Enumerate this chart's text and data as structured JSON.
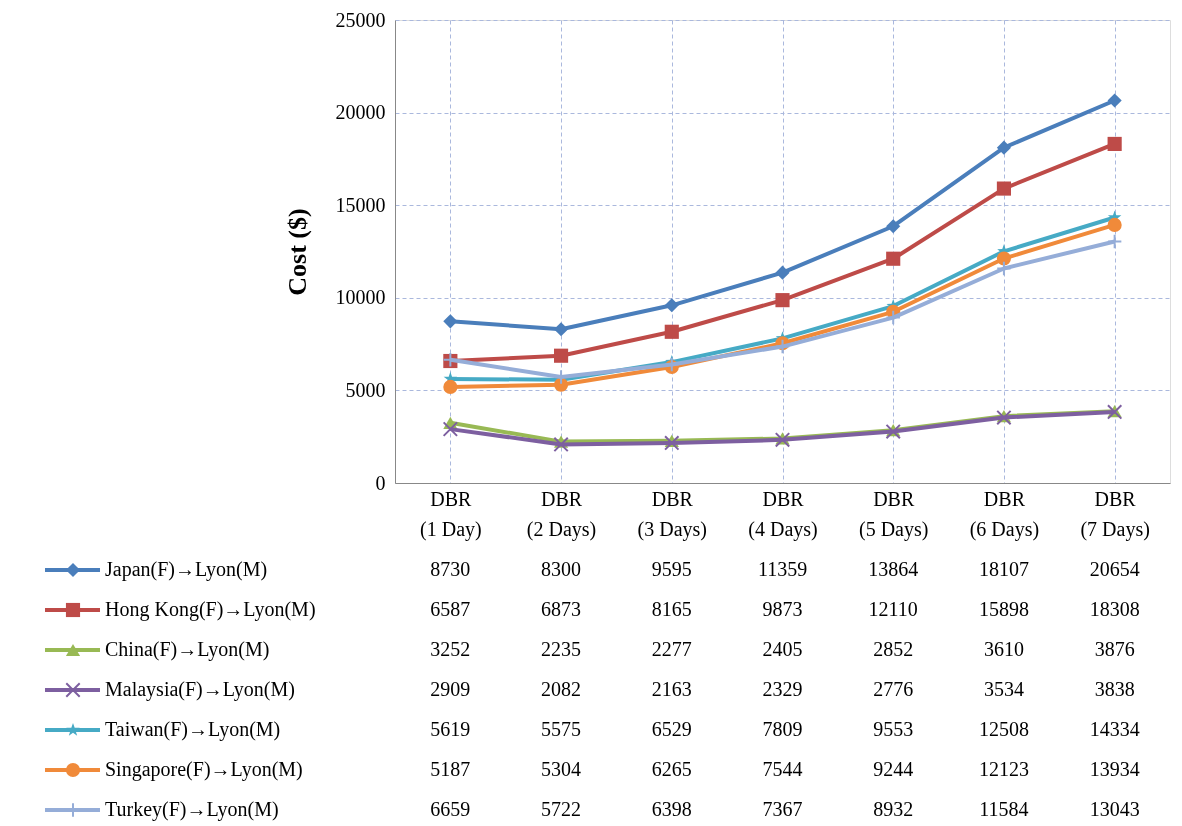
{
  "chart_data": {
    "type": "line",
    "ylabel": "Cost ($)",
    "categories": [
      "DBR\n(1 Day)",
      "DBR\n(2 Days)",
      "DBR\n(3 Days)",
      "DBR\n(4 Days)",
      "DBR\n(5 Days)",
      "DBR\n(6 Days)",
      "DBR\n(7 Days)"
    ],
    "series": [
      {
        "name": "Japan(F)→Lyon(M)",
        "color": "#4a7ebb",
        "marker": "diamond",
        "values": [
          8730,
          8300,
          9595,
          11359,
          13864,
          18107,
          20654
        ]
      },
      {
        "name": "Hong Kong(F)→Lyon(M)",
        "color": "#be4b48",
        "marker": "square",
        "values": [
          6587,
          6873,
          8165,
          9873,
          12110,
          15898,
          18308
        ]
      },
      {
        "name": "China(F)→Lyon(M)",
        "color": "#98b954",
        "marker": "triangle",
        "values": [
          3252,
          2235,
          2277,
          2405,
          2852,
          3610,
          3876
        ]
      },
      {
        "name": "Malaysia(F)→Lyon(M)",
        "color": "#7d5fa0",
        "marker": "cross",
        "values": [
          2909,
          2082,
          2163,
          2329,
          2776,
          3534,
          3838
        ]
      },
      {
        "name": "Taiwan(F)→Lyon(M)",
        "color": "#46aac5",
        "marker": "star",
        "values": [
          5619,
          5575,
          6529,
          7809,
          9553,
          12508,
          14334
        ]
      },
      {
        "name": "Singapore(F)→Lyon(M)",
        "color": "#f08a3a",
        "marker": "circle",
        "values": [
          5187,
          5304,
          6265,
          7544,
          9244,
          12123,
          13934
        ]
      },
      {
        "name": "Turkey(F)→Lyon(M)",
        "color": "#95add8",
        "marker": "plus",
        "values": [
          6659,
          5722,
          6398,
          7367,
          8932,
          11584,
          13043
        ]
      }
    ],
    "ylim": [
      0,
      25000
    ],
    "yticks": [
      0,
      5000,
      10000,
      15000,
      20000,
      25000
    ],
    "grid": true,
    "legend": "bottom",
    "data_labels": true,
    "line_style": "solid"
  }
}
